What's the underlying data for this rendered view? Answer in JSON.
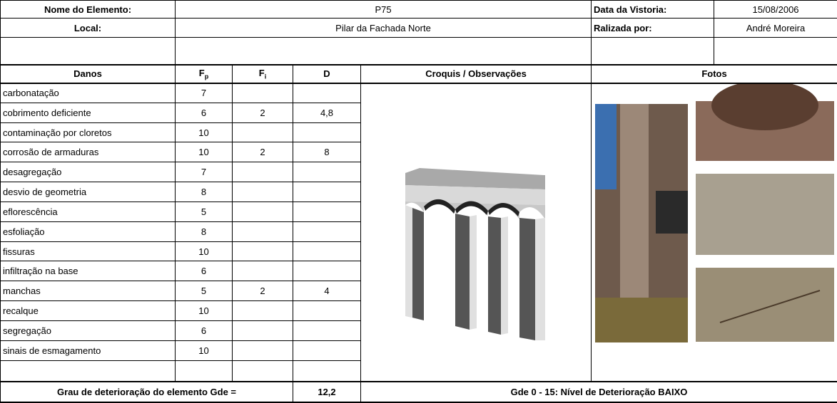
{
  "header": {
    "element_label": "Nome do Elemento:",
    "element": "P75",
    "date_label": "Data da Vistoria:",
    "date": "15/08/2006",
    "local_label": "Local:",
    "local": "Pilar da Fachada Norte",
    "by_label": "Ralizada por:",
    "by": "André Moreira"
  },
  "columns": {
    "danos": "Danos",
    "fp": {
      "letter": "F",
      "index": "p"
    },
    "fi": {
      "letter": "F",
      "index": "i"
    },
    "d": "D",
    "croquis": "Croquis / Observações",
    "fotos": "Fotos"
  },
  "rows": [
    {
      "dano": "carbonatação",
      "fp": "7",
      "fi": null,
      "d": null
    },
    {
      "dano": "cobrimento deficiente",
      "fp": "6",
      "fi": "2",
      "d": "4,8"
    },
    {
      "dano": "contaminação por cloretos",
      "fp": "10",
      "fi": null,
      "d": null
    },
    {
      "dano": "corrosão de armaduras",
      "fp": "10",
      "fi": "2",
      "d": "8"
    },
    {
      "dano": "desagregação",
      "fp": "7",
      "fi": null,
      "d": null
    },
    {
      "dano": "desvio de geometria",
      "fp": "8",
      "fi": null,
      "d": null
    },
    {
      "dano": "eflorescência",
      "fp": "5",
      "fi": null,
      "d": null
    },
    {
      "dano": "esfoliação",
      "fp": "8",
      "fi": null,
      "d": null
    },
    {
      "dano": "fissuras",
      "fp": "10",
      "fi": null,
      "d": null
    },
    {
      "dano": "infiltração na base",
      "fp": "6",
      "fi": null,
      "d": null
    },
    {
      "dano": "manchas",
      "fp": "5",
      "fi": "2",
      "d": "4"
    },
    {
      "dano": "recalque",
      "fp": "10",
      "fi": null,
      "d": null
    },
    {
      "dano": "segregação",
      "fp": "6",
      "fi": null,
      "d": null
    },
    {
      "dano": "sinais de esmagamento",
      "fp": "10",
      "fi": null,
      "d": null
    }
  ],
  "footer": {
    "gde_label": "Grau de deterioração do elemento Gde  =",
    "gde": "12,2",
    "level": "Gde 0 - 15:  Nível de Deterioração BAIXO"
  }
}
